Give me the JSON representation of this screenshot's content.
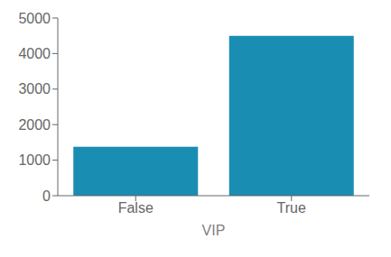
{
  "chart_data": {
    "type": "bar",
    "categories": [
      "False",
      "True"
    ],
    "values": [
      1380,
      4500
    ],
    "color": "#1a8db3",
    "xlabel": "VIP",
    "ylim": [
      0,
      5000
    ],
    "yticks": [
      0,
      1000,
      2000,
      3000,
      4000,
      5000
    ],
    "grid": false
  }
}
